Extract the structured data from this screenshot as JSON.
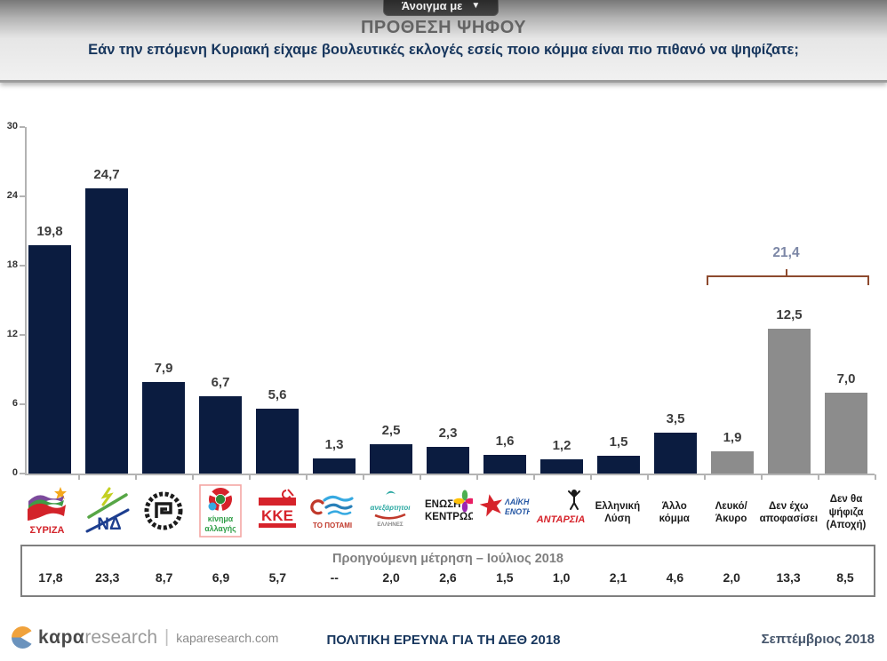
{
  "toolbar": {
    "open_with_label": "Άνοιγμα με",
    "caret": "▼"
  },
  "header": {
    "title": "ΠΡΟΘΕΣΗ ΨΗΦΟΥ",
    "subtitle": "Εάν την επόμενη Κυριακή είχαμε βουλευτικές εκλογές εσείς ποιο κόμμα είναι πιο πιθανό να ψηφίζατε;"
  },
  "chart_data": {
    "type": "bar",
    "title": "ΠΡΟΘΕΣΗ ΨΗΦΟΥ",
    "xlabel": "",
    "ylabel": "",
    "ylim": [
      0,
      30
    ],
    "yticks": [
      0,
      6,
      12,
      18,
      24,
      30
    ],
    "grid": false,
    "legend": false,
    "categories": [
      "ΣΥΡΙΖΑ",
      "ΝΔ",
      "Χρυσή Αυγή",
      "Κίνημα Αλλαγής",
      "ΚΚΕ",
      "Το Ποτάμι",
      "Ανεξάρτητοι Έλληνες",
      "Ένωση Κεντρώων",
      "Λαϊκή Ενότητα",
      "ΑΝΤΑΡΣΥΑ",
      "Ελληνική Λύση",
      "Άλλο κόμμα",
      "Λευκό/Άκυρο",
      "Δεν έχω αποφασίσει",
      "Δεν θα ψήφιζα (Αποχή)"
    ],
    "values": [
      19.8,
      24.7,
      7.9,
      6.7,
      5.6,
      1.3,
      2.5,
      2.3,
      1.6,
      1.2,
      1.5,
      3.5,
      1.9,
      12.5,
      7.0
    ],
    "value_labels": [
      "19,8",
      "24,7",
      "7,9",
      "6,7",
      "5,6",
      "1,3",
      "2,5",
      "2,3",
      "1,6",
      "1,2",
      "1,5",
      "3,5",
      "1,9",
      "12,5",
      "7,0"
    ],
    "party_bar_color": "#0b1c40",
    "neutral_bar_color": "#8c8c8c",
    "neutral_from_index": 12,
    "bracket": {
      "label": "21,4",
      "from_index": 12,
      "to_index": 14,
      "color": "#8d4a2e",
      "label_color": "#7c87a6"
    }
  },
  "x_axis_items": [
    {
      "icon": "syriza-logo",
      "name": "ΣΥΡΙΖΑ"
    },
    {
      "icon": "nea-dimokratia-logo",
      "name": "ΝΔ"
    },
    {
      "icon": "xrysi-avgi-logo",
      "name": "Χρυσή Αυγή"
    },
    {
      "icon": "kinima-allagis-logo",
      "name": "Κίνημα Αλλαγής"
    },
    {
      "icon": "kke-logo",
      "name": "ΚΚΕ"
    },
    {
      "icon": "to-potami-logo",
      "name": "Το Ποτάμι"
    },
    {
      "icon": "anexartitoi-ellines-logo",
      "name": "Ανεξάρτητοι Έλληνες"
    },
    {
      "icon": "enosi-kentroon-logo",
      "name": "Ένωση Κεντρώων"
    },
    {
      "icon": "laiki-enotita-logo",
      "name": "Λαϊκή Ενότητα"
    },
    {
      "icon": "antarsya-logo",
      "name": "ΑΝΤΑΡΣΥΑ"
    },
    {
      "lines": [
        "Ελληνική",
        "Λύση"
      ],
      "name": "Ελληνική Λύση"
    },
    {
      "lines": [
        "Άλλο",
        "κόμμα"
      ],
      "name": "Άλλο κόμμα"
    },
    {
      "lines": [
        "Λευκό/",
        "Άκυρο"
      ],
      "name": "Λευκό/Άκυρο"
    },
    {
      "lines": [
        "Δεν έχω",
        "αποφασίσει"
      ],
      "name": "Δεν έχω αποφασίσει"
    },
    {
      "lines": [
        "Δεν θα",
        "ψήφιζα",
        "(Αποχή)"
      ],
      "name": "Δεν θα ψήφιζα (Αποχή)"
    }
  ],
  "previous_table": {
    "title": "Προηγούμενη μέτρηση – Ιούλιος 2018",
    "values": [
      "17,8",
      "23,3",
      "8,7",
      "6,9",
      "5,7",
      "--",
      "2,0",
      "2,6",
      "1,5",
      "1,0",
      "2,1",
      "4,6",
      "2,0",
      "13,3",
      "8,5"
    ]
  },
  "footer": {
    "brand_primary": "kαpα",
    "brand_secondary": "research",
    "brand_domain": "kaparesearch.com",
    "center_title": "ΠΟΛΙΤΙΚΗ ΕΡΕΥΝΑ ΓΙΑ ΤΗ ΔΕΘ 2018",
    "date": "Σεπτέμβριος 2018"
  }
}
